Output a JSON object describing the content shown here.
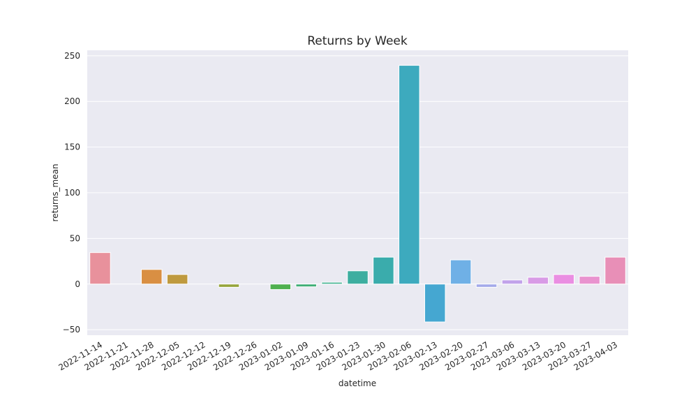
{
  "chart_data": {
    "type": "bar",
    "title": "Returns by Week",
    "xlabel": "datetime",
    "ylabel": "returns_mean",
    "ylim": [
      -56,
      256
    ],
    "yticks": [
      250,
      200,
      150,
      100,
      50,
      0,
      -50
    ],
    "grid": true,
    "categories": [
      "2022-11-14",
      "2022-11-21",
      "2022-11-28",
      "2022-12-05",
      "2022-12-12",
      "2022-12-19",
      "2022-12-26",
      "2023-01-02",
      "2023-01-09",
      "2023-01-16",
      "2023-01-23",
      "2023-01-30",
      "2023-02-06",
      "2023-02-13",
      "2023-02-20",
      "2023-02-27",
      "2023-03-06",
      "2023-03-13",
      "2023-03-20",
      "2023-03-27",
      "2023-04-03"
    ],
    "values": [
      34.5,
      0,
      16,
      10.5,
      0,
      -3.5,
      0,
      -6,
      -3,
      2,
      14.5,
      29.5,
      239.5,
      -41.5,
      26.5,
      -3.5,
      4.5,
      7.5,
      10.5,
      8.5,
      29.5
    ],
    "colors": [
      "#e8919c",
      "#e88c6a",
      "#d98f43",
      "#bf9a3f",
      "#a9a03e",
      "#95a43b",
      "#6aac3d",
      "#4fb04f",
      "#3fae76",
      "#3db08d",
      "#3daea0",
      "#3aacac",
      "#3daabe",
      "#45a7d1",
      "#6fb0e6",
      "#a3a9ea",
      "#c1a2ea",
      "#d89be6",
      "#ea8ee2",
      "#e993cf",
      "#e88fb7"
    ]
  }
}
